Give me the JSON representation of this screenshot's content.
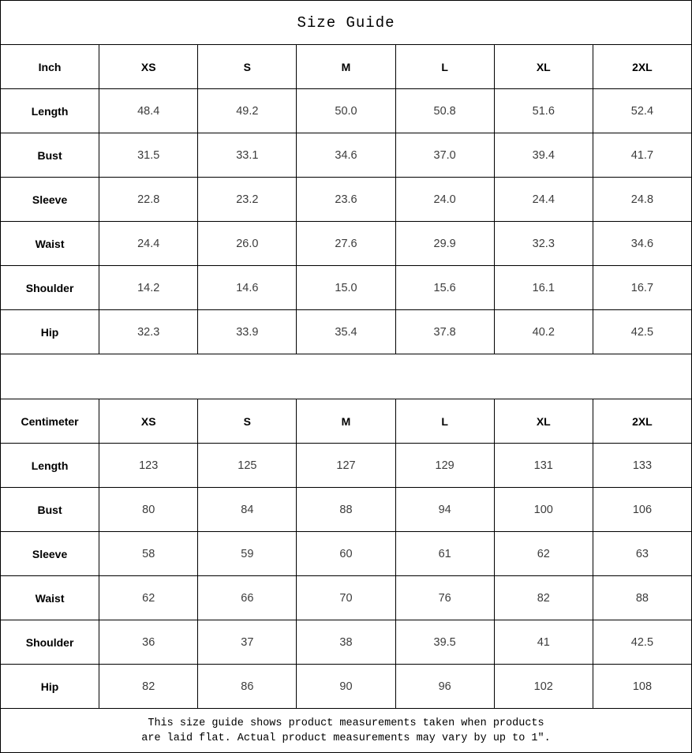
{
  "page": {
    "title": "Size Guide",
    "footer_line1": "This size guide shows product measurements taken when products",
    "footer_line2": "are laid flat. Actual product measurements may vary by up to 1″."
  },
  "colors": {
    "border": "#000000",
    "background": "#ffffff",
    "header_text": "#000000",
    "value_text": "#3c3c3c"
  },
  "inch_table": {
    "unit_label": "Inch",
    "size_headers": [
      "XS",
      "S",
      "M",
      "L",
      "XL",
      "2XL"
    ],
    "rows": [
      {
        "label": "Length",
        "values": [
          "48.4",
          "49.2",
          "50.0",
          "50.8",
          "51.6",
          "52.4"
        ]
      },
      {
        "label": "Bust",
        "values": [
          "31.5",
          "33.1",
          "34.6",
          "37.0",
          "39.4",
          "41.7"
        ]
      },
      {
        "label": "Sleeve",
        "values": [
          "22.8",
          "23.2",
          "23.6",
          "24.0",
          "24.4",
          "24.8"
        ]
      },
      {
        "label": "Waist",
        "values": [
          "24.4",
          "26.0",
          "27.6",
          "29.9",
          "32.3",
          "34.6"
        ]
      },
      {
        "label": "Shoulder",
        "values": [
          "14.2",
          "14.6",
          "15.0",
          "15.6",
          "16.1",
          "16.7"
        ]
      },
      {
        "label": "Hip",
        "values": [
          "32.3",
          "33.9",
          "35.4",
          "37.8",
          "40.2",
          "42.5"
        ]
      }
    ]
  },
  "cm_table": {
    "unit_label": "Centimeter",
    "size_headers": [
      "XS",
      "S",
      "M",
      "L",
      "XL",
      "2XL"
    ],
    "rows": [
      {
        "label": "Length",
        "values": [
          "123",
          "125",
          "127",
          "129",
          "131",
          "133"
        ]
      },
      {
        "label": "Bust",
        "values": [
          "80",
          "84",
          "88",
          "94",
          "100",
          "106"
        ]
      },
      {
        "label": "Sleeve",
        "values": [
          "58",
          "59",
          "60",
          "61",
          "62",
          "63"
        ]
      },
      {
        "label": "Waist",
        "values": [
          "62",
          "66",
          "70",
          "76",
          "82",
          "88"
        ]
      },
      {
        "label": "Shoulder",
        "values": [
          "36",
          "37",
          "38",
          "39.5",
          "41",
          "42.5"
        ]
      },
      {
        "label": "Hip",
        "values": [
          "82",
          "86",
          "90",
          "96",
          "102",
          "108"
        ]
      }
    ]
  }
}
